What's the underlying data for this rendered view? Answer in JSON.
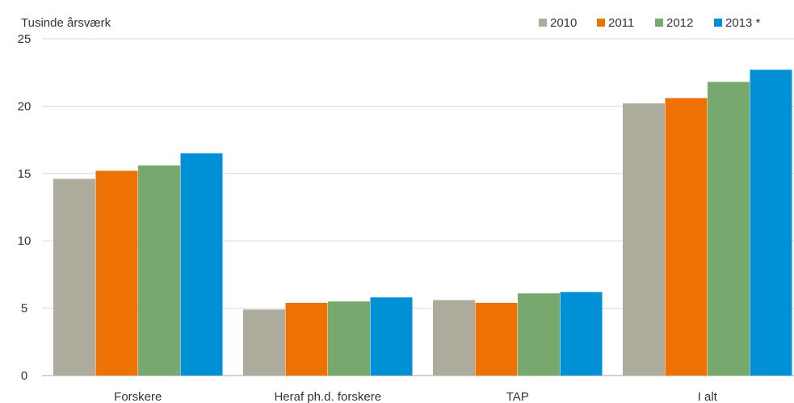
{
  "chart_data": {
    "type": "bar",
    "unit_label": "Tusinde årsværk",
    "categories": [
      "Forskere",
      "Heraf ph.d. forskere",
      "TAP",
      "I alt"
    ],
    "series": [
      {
        "name": "2010",
        "color": "#adab9c",
        "values": [
          14.6,
          4.9,
          5.6,
          20.2
        ]
      },
      {
        "name": "2011",
        "color": "#ed7203",
        "values": [
          15.2,
          5.4,
          5.4,
          20.6
        ]
      },
      {
        "name": "2012",
        "color": "#77a96f",
        "values": [
          15.6,
          5.5,
          6.1,
          21.8
        ]
      },
      {
        "name": "2013 *",
        "color": "#0090d5",
        "values": [
          16.5,
          5.8,
          6.2,
          22.7
        ]
      }
    ],
    "ylim": [
      0,
      25
    ],
    "yticks": [
      "0",
      "5",
      "10",
      "15",
      "20",
      "25"
    ],
    "grid": "horizontal",
    "legend_position": "top-right"
  }
}
